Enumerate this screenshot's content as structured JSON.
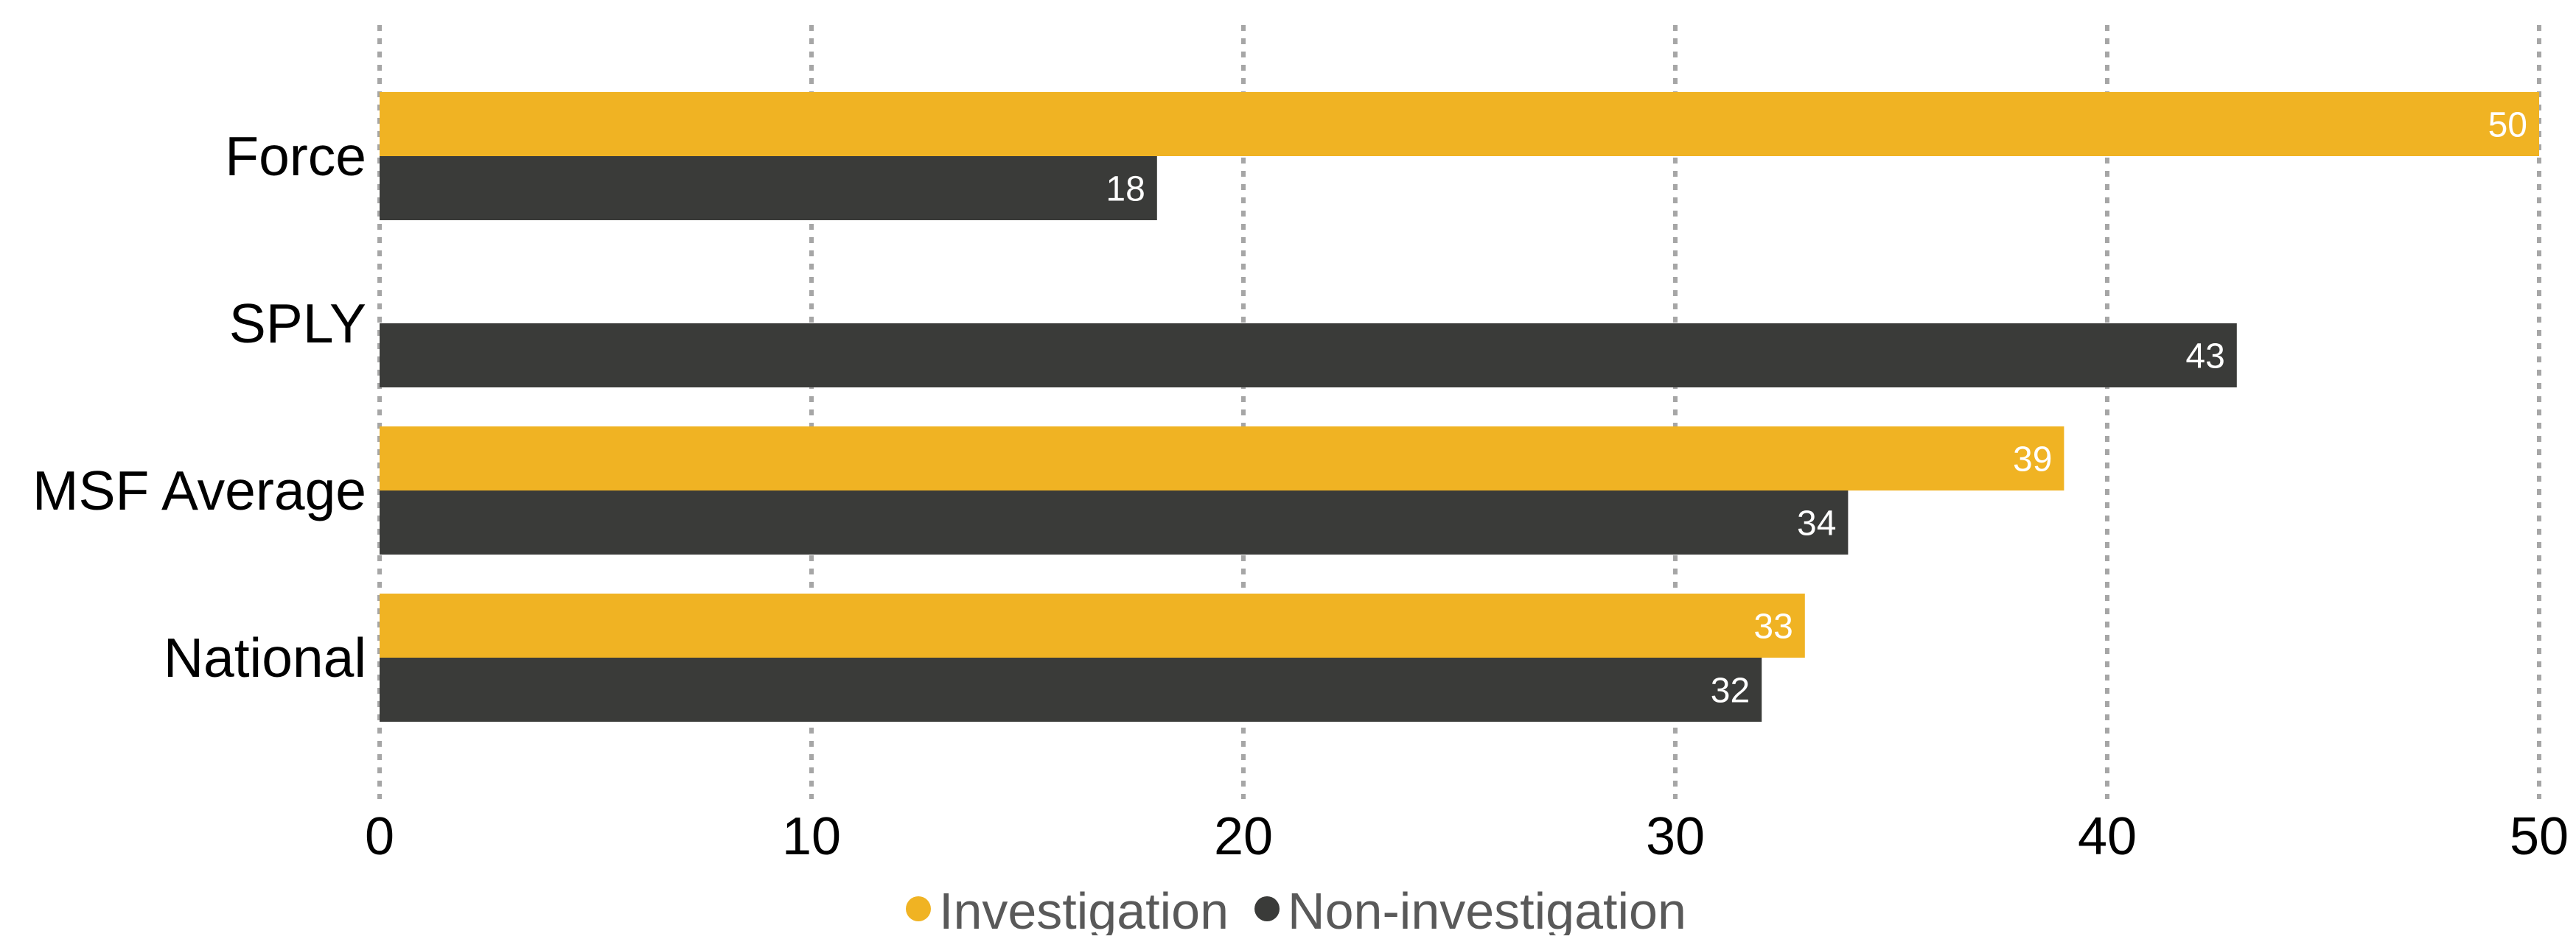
{
  "chart_data": {
    "type": "bar",
    "orientation": "horizontal",
    "categories": [
      "Force",
      "SPLY",
      "MSF Average",
      "National"
    ],
    "series": [
      {
        "name": "Investigation",
        "color": "#F0B323",
        "values": [
          50,
          null,
          39,
          33
        ]
      },
      {
        "name": "Non-investigation",
        "color": "#3A3B39",
        "values": [
          18,
          43,
          34,
          32
        ]
      }
    ],
    "xlim": [
      0,
      50
    ],
    "xticks": [
      0,
      10,
      20,
      30,
      40,
      50
    ],
    "grid": "vertical-dotted",
    "grid_color": "#A6A6A6",
    "legend_position": "bottom",
    "data_labels": true
  }
}
